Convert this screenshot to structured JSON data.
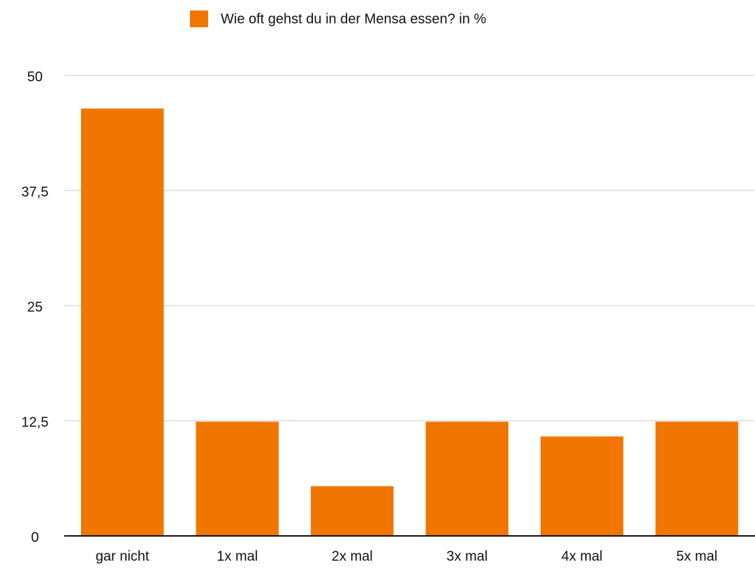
{
  "chart_data": {
    "type": "bar",
    "categories": [
      "gar nicht",
      "1x mal",
      "2x mal",
      "3x mal",
      "4x mal",
      "5x mal"
    ],
    "series": [
      {
        "name": "Wie oft gehst du in der Mensa essen? in %",
        "color": "#f07600",
        "values": [
          46.4,
          12.4,
          5.4,
          12.4,
          10.8,
          12.4
        ]
      }
    ],
    "ylim": [
      0,
      50
    ],
    "yticks": [
      0,
      {
        "value": 12.5,
        "label": "12,5"
      },
      25,
      {
        "value": 37.5,
        "label": "37,5"
      },
      50
    ],
    "grid": true,
    "legend": "top"
  }
}
